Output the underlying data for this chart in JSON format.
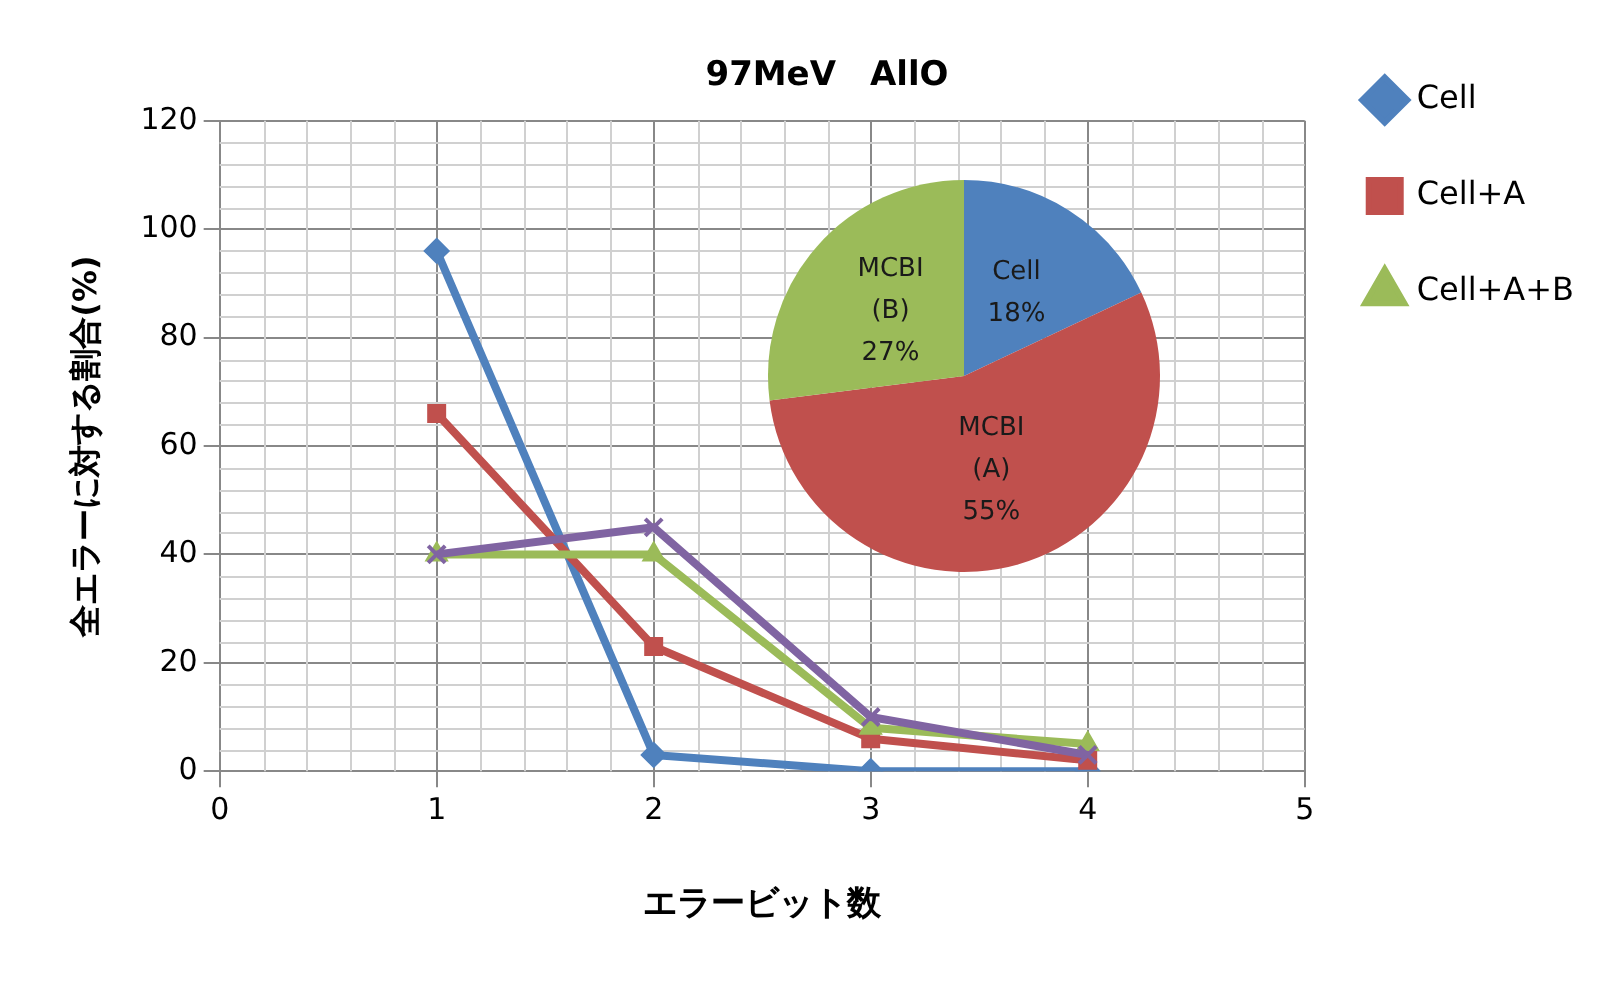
{
  "chart_data": [
    {
      "type": "line",
      "title": "97MeV　AllO",
      "xlabel": "エラービット数",
      "ylabel": "全エラーに対する割合(%)",
      "x": [
        1,
        2,
        3,
        4
      ],
      "series": [
        {
          "name": "Cell",
          "color": "#4f81bd",
          "marker": "diamond",
          "values": [
            96,
            3,
            0,
            0
          ]
        },
        {
          "name": "Cell+A",
          "color": "#c0504d",
          "marker": "square",
          "values": [
            66,
            23,
            6,
            2
          ]
        },
        {
          "name": "Cell+A+B",
          "color": "#9bbb59",
          "marker": "triangle",
          "values": [
            40,
            40,
            8,
            5
          ]
        },
        {
          "color": "#8064a2",
          "marker": "cross",
          "values": [
            40,
            45,
            10,
            3
          ]
        }
      ],
      "xlim": [
        0,
        5
      ],
      "xticks": [
        0,
        1,
        2,
        3,
        4,
        5
      ],
      "ylim": [
        0,
        120
      ],
      "yticks": [
        0,
        20,
        40,
        60,
        80,
        100,
        120
      ],
      "grid": true,
      "legend": "right"
    },
    {
      "type": "pie",
      "categories": [
        "Cell",
        "MCBI (A)",
        "MCBI (B)"
      ],
      "values": [
        18,
        55,
        27
      ],
      "colors": [
        "#4f81bd",
        "#c0504d",
        "#9bbb59"
      ],
      "value_labels": [
        "18%",
        "55%",
        "27%"
      ]
    }
  ]
}
